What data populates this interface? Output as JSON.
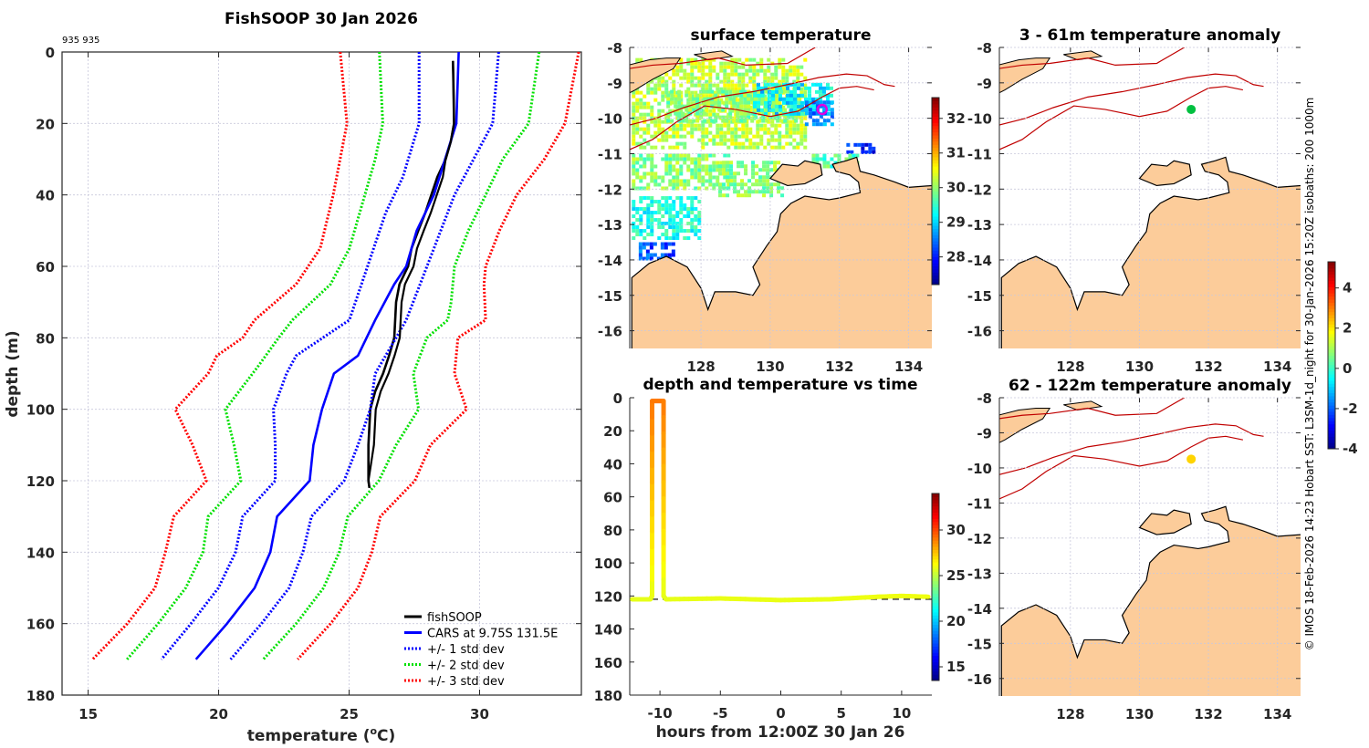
{
  "chart_data": [
    {
      "id": "profile",
      "type": "line",
      "title": "FishSOOP 30 Jan 2026",
      "corner_label": "935 935",
      "xlabel": "temperature (°C)",
      "xlabel_parts": {
        "pre": "temperature (",
        "sup": "o",
        "post": "C)"
      },
      "ylabel": "depth (m)",
      "xlim": [
        14,
        33.9
      ],
      "ylim": [
        180,
        0
      ],
      "xticks": [
        15,
        20,
        25,
        30
      ],
      "yticks": [
        0,
        20,
        40,
        60,
        80,
        100,
        120,
        140,
        160,
        180
      ],
      "grid": true,
      "legend_position": "bottom-right",
      "series": [
        {
          "name": "fishSOOP",
          "legend": "fishSOOP",
          "color": "#000000",
          "style": "solid",
          "depth": [
            2.5,
            10,
            20,
            25,
            30,
            35,
            40,
            45,
            50,
            55,
            60,
            65,
            70,
            80,
            85,
            90,
            95,
            100,
            110,
            120,
            122
          ],
          "temp": [
            28.98,
            29.0,
            29.02,
            28.9,
            28.7,
            28.38,
            28.15,
            27.92,
            27.65,
            27.39,
            27.26,
            26.93,
            26.8,
            26.73,
            26.53,
            26.3,
            26.0,
            25.81,
            25.74,
            25.74,
            25.78
          ]
        },
        {
          "name": "CARS",
          "legend": "CARS at 9.75S 131.5E",
          "color": "#0000ff",
          "style": "solid",
          "depth": [
            0,
            20,
            40,
            50,
            60,
            65,
            75,
            85,
            90,
            100,
            110,
            120,
            130,
            140,
            150,
            160,
            170
          ],
          "temp": [
            29.2,
            29.11,
            28.25,
            27.59,
            27.19,
            26.73,
            26.0,
            25.34,
            24.42,
            23.96,
            23.63,
            23.49,
            22.24,
            21.98,
            21.38,
            20.32,
            19.13
          ]
        },
        {
          "name": "minus1std",
          "legend": "+/- 1 std dev",
          "color": "#0000ff",
          "style": "dotted",
          "depth": [
            0,
            20,
            35,
            45,
            75,
            85,
            90,
            100,
            110,
            120,
            130,
            140,
            150,
            160,
            170
          ],
          "temp": [
            27.68,
            27.68,
            27.06,
            26.4,
            25.01,
            22.97,
            22.6,
            22.1,
            22.17,
            22.17,
            20.92,
            20.65,
            19.99,
            18.94,
            17.81
          ]
        },
        {
          "name": "plus1std",
          "legend": "",
          "color": "#0000ff",
          "style": "dotted",
          "depth": [
            0,
            20,
            40,
            55,
            65,
            75,
            80,
            90,
            100,
            110,
            120,
            130,
            140,
            150,
            160,
            170
          ],
          "temp": [
            30.73,
            30.5,
            29.04,
            28.25,
            27.72,
            27.19,
            26.8,
            26.0,
            25.81,
            25.34,
            24.81,
            23.56,
            23.23,
            22.7,
            21.64,
            20.46
          ]
        },
        {
          "name": "minus2std",
          "legend": "+/- 2 std dev",
          "color": "#00e000",
          "style": "dotted",
          "depth": [
            0,
            20,
            30,
            55,
            65,
            75,
            80,
            88,
            100,
            110,
            120,
            130,
            140,
            150,
            160,
            170
          ],
          "temp": [
            26.16,
            26.29,
            26.0,
            25.01,
            24.29,
            22.83,
            22.3,
            21.51,
            20.26,
            20.59,
            20.85,
            19.6,
            19.4,
            18.74,
            17.68,
            16.49
          ]
        },
        {
          "name": "plus2std",
          "legend": "",
          "color": "#00e000",
          "style": "dotted",
          "depth": [
            0,
            20,
            30,
            40,
            50,
            60,
            70,
            75,
            80,
            90,
            100,
            110,
            120,
            130,
            140,
            150,
            160,
            170
          ],
          "temp": [
            32.28,
            31.88,
            30.89,
            30.23,
            29.57,
            29.04,
            28.91,
            28.78,
            27.98,
            27.46,
            27.66,
            26.8,
            26.14,
            24.95,
            24.62,
            24.02,
            22.97,
            21.71
          ]
        },
        {
          "name": "minus3std",
          "legend": "+/- 3 std dev",
          "color": "#ff0000",
          "style": "dotted",
          "depth": [
            0,
            20,
            40,
            55,
            65,
            75,
            80,
            85,
            90,
            100,
            110,
            120,
            130,
            140,
            150,
            160,
            170
          ],
          "temp": [
            24.66,
            24.92,
            24.39,
            23.89,
            22.97,
            21.38,
            20.92,
            19.93,
            19.6,
            18.34,
            19.0,
            19.53,
            18.28,
            17.96,
            17.56,
            16.5,
            15.17
          ]
        },
        {
          "name": "plus3std",
          "legend": "",
          "color": "#ff0000",
          "style": "dotted",
          "depth": [
            0,
            20,
            30,
            40,
            50,
            60,
            65,
            75,
            80,
            90,
            100,
            110,
            120,
            130,
            140,
            150,
            160,
            170
          ],
          "temp": [
            33.8,
            33.27,
            32.48,
            31.42,
            30.76,
            30.23,
            30.17,
            30.23,
            29.17,
            29.04,
            29.5,
            28.12,
            27.52,
            26.2,
            25.87,
            25.34,
            24.29,
            23.03
          ]
        }
      ]
    },
    {
      "id": "sst_map",
      "type": "heatmap",
      "title": "surface temperature",
      "xlim": [
        125.94,
        134.67
      ],
      "ylim": [
        -16.5,
        -8
      ],
      "xticks": [
        128,
        130,
        132,
        134
      ],
      "yticks": [
        -8,
        -9,
        -10,
        -11,
        -12,
        -13,
        -14,
        -15,
        -16
      ],
      "colorbar": {
        "range": [
          27.2,
          32.6
        ],
        "ticks": [
          28,
          29,
          30,
          31,
          32
        ]
      },
      "marker": {
        "lon": 131.5,
        "lat": -9.75,
        "shape": "circle",
        "color": "#e000e0"
      }
    },
    {
      "id": "time_series",
      "type": "scatter",
      "title": "depth and temperature vs time",
      "xlabel": "hours from 12:00Z 30 Jan 26",
      "ylabel": "",
      "xlim": [
        -12.5,
        12.5
      ],
      "ylim": [
        180,
        0
      ],
      "xticks": [
        -10,
        -5,
        0,
        5,
        10
      ],
      "yticks": [
        0,
        20,
        40,
        60,
        80,
        100,
        120,
        140,
        160,
        180
      ],
      "colorbar": {
        "range": [
          13.5,
          34
        ],
        "ticks": [
          15,
          20,
          25,
          30
        ]
      },
      "bottom_depth_line": 122,
      "track": [
        {
          "t": -12.3,
          "depth": 122,
          "temp": 25.8
        },
        {
          "t": -10.8,
          "depth": 122,
          "temp": 25.8
        },
        {
          "t": -10.65,
          "depth": 120,
          "temp": 25.8
        },
        {
          "t": -10.65,
          "depth": 2,
          "temp": 29.0
        },
        {
          "t": -9.7,
          "depth": 2,
          "temp": 29.0
        },
        {
          "t": -9.7,
          "depth": 120,
          "temp": 25.8
        },
        {
          "t": -9.5,
          "depth": 122,
          "temp": 25.8
        },
        {
          "t": -5,
          "depth": 121.5,
          "temp": 25.9
        },
        {
          "t": 0,
          "depth": 122.5,
          "temp": 25.9
        },
        {
          "t": 4,
          "depth": 122,
          "temp": 25.9
        },
        {
          "t": 8,
          "depth": 120.5,
          "temp": 26.0
        },
        {
          "t": 10,
          "depth": 120,
          "temp": 26.0
        },
        {
          "t": 12.2,
          "depth": 120.5,
          "temp": 26.0
        }
      ]
    },
    {
      "id": "anomaly_3_61",
      "type": "heatmap",
      "title": "3 - 61m temperature anomaly",
      "xlim": [
        125.94,
        134.67
      ],
      "ylim": [
        -16.5,
        -8
      ],
      "xticks": [
        128,
        130,
        132,
        134
      ],
      "yticks": [
        -8,
        -9,
        -10,
        -11,
        -12,
        -13,
        -14,
        -15,
        -16
      ],
      "marker": {
        "lon": 131.5,
        "lat": -9.75,
        "anomaly": 0.2,
        "color": "#00c040"
      }
    },
    {
      "id": "anomaly_62_122",
      "type": "heatmap",
      "title": "62 - 122m temperature anomaly",
      "xlim": [
        125.94,
        134.67
      ],
      "ylim": [
        -16.5,
        -8
      ],
      "xticks": [
        128,
        130,
        132,
        134
      ],
      "yticks": [
        -8,
        -9,
        -10,
        -11,
        -12,
        -13,
        -14,
        -15,
        -16
      ],
      "marker": {
        "lon": 131.5,
        "lat": -9.75,
        "anomaly": 2.3,
        "color": "#ffd400"
      }
    },
    {
      "id": "anomaly_colorbar",
      "type": "heatmap",
      "colorbar": {
        "range": [
          -4,
          5.3
        ],
        "ticks": [
          -4,
          -2,
          0,
          2,
          4
        ]
      }
    }
  ],
  "credit": "© IMOS 18-Feb-2026 14:23 Hobart SST: L3SM-1d_night for 30-Jan-2026 15:20Z isobaths: 200  1000m",
  "colors": {
    "land": "#fccc9a",
    "isobath": "#c00000",
    "coast": "#000000"
  }
}
